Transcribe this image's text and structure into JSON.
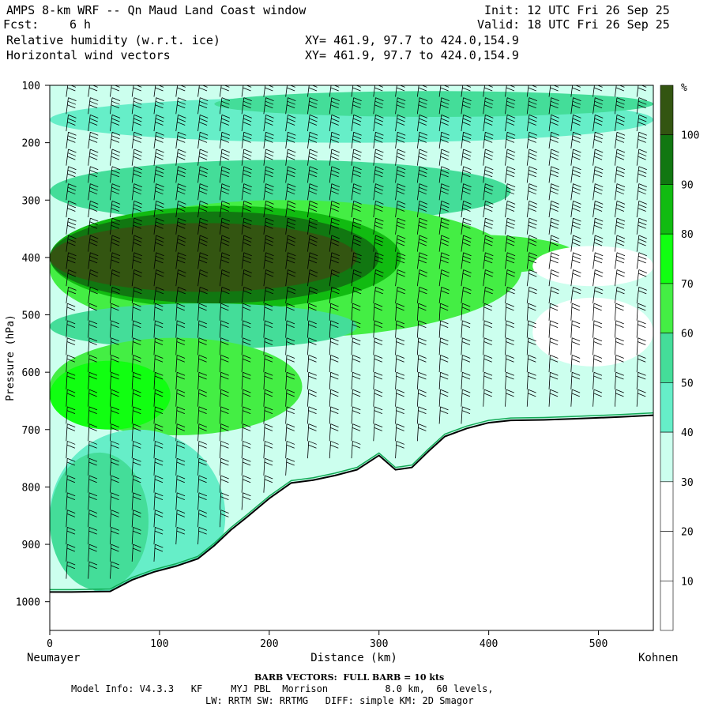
{
  "header": {
    "title": "AMPS 8-km WRF -- Qn Maud Land Coast window",
    "fcst_label": "Fcst:",
    "fcst_value": "6 h",
    "field1": "Relative humidity (w.r.t. ice)",
    "field2": "Horizontal wind vectors",
    "init": "Init: 12 UTC Fri 26 Sep 25",
    "valid": "Valid: 18 UTC Fri 26 Sep 25",
    "xy1": "XY= 461.9, 97.7 to 424.0,154.9",
    "xy2": "XY= 461.9, 97.7 to 424.0,154.9"
  },
  "footer": {
    "barb_note": "BARB VECTORS:  FULL BARB = 10 kts",
    "model_line1": "Model Info: V4.3.3   KF     MYJ PBL  Morrison          8.0 km,  60 levels,",
    "model_line2": "LW: RRTM SW: RRTMG   DIFF: simple KM: 2D Smagor"
  },
  "chart_data": {
    "type": "cross-section",
    "title": "Relative humidity (w.r.t. ice) and horizontal wind vectors",
    "xlabel": "Distance (km)",
    "ylabel": "Pressure (hPa)",
    "xlim": [
      0,
      550
    ],
    "ylim": [
      1050,
      100
    ],
    "x_ticks": [
      "0",
      "100",
      "200",
      "300",
      "400",
      "500"
    ],
    "y_ticks": [
      "100",
      "200",
      "300",
      "400",
      "500",
      "600",
      "700",
      "800",
      "900",
      "1000"
    ],
    "x_tick_values": [
      0,
      100,
      200,
      300,
      400,
      500
    ],
    "y_tick_values": [
      100,
      200,
      300,
      400,
      500,
      600,
      700,
      800,
      900,
      1000
    ],
    "left_endpoint": "Neumayer",
    "right_endpoint": "Kohnen",
    "colorbar": {
      "unit": "%",
      "tick_labels": [
        "10",
        "20",
        "30",
        "40",
        "50",
        "60",
        "70",
        "80",
        "90",
        "100"
      ],
      "levels": [
        0,
        10,
        20,
        30,
        40,
        50,
        60,
        70,
        80,
        90,
        100,
        110
      ],
      "colors": [
        "#ffffff",
        "#ffffff",
        "#ffffff",
        "#ccffee",
        "#66eec8",
        "#44dd99",
        "#44ee44",
        "#11ff11",
        "#11bb11",
        "#117711",
        "#335511"
      ]
    },
    "terrain_surface_pressure": {
      "distance_km": [
        0,
        20,
        55,
        75,
        95,
        115,
        135,
        150,
        165,
        180,
        200,
        220,
        240,
        260,
        280,
        300,
        315,
        330,
        345,
        360,
        380,
        400,
        420,
        450,
        480,
        520,
        550
      ],
      "pressure_hPa": [
        983,
        983,
        982,
        962,
        948,
        938,
        925,
        902,
        875,
        852,
        820,
        793,
        788,
        780,
        770,
        745,
        770,
        766,
        738,
        712,
        698,
        688,
        684,
        683,
        681,
        678,
        675
      ]
    },
    "rh_features": [
      {
        "name": "upper moist band",
        "pressure_hPa": 160,
        "rh": 50
      },
      {
        "name": "saturated layer",
        "pressure_hPa_range": [
          330,
          460
        ],
        "x_km_range": [
          0,
          280
        ],
        "rh": 95
      },
      {
        "name": "moist tongue",
        "pressure_hPa_range": [
          360,
          420
        ],
        "x_km_range": [
          280,
          420
        ],
        "rh": 70
      },
      {
        "name": "low-level moist region",
        "pressure_hPa_range": [
          550,
          700
        ],
        "x_km_range": [
          0,
          200
        ],
        "rh": 70
      }
    ]
  }
}
